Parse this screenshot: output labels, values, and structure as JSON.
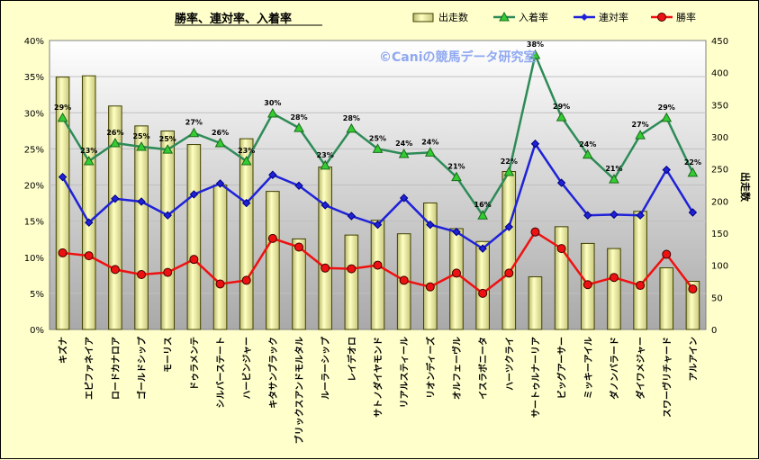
{
  "chart_data": {
    "type": "bar",
    "title": "勝率、連対率、入着率",
    "watermark": "©Caniの競馬データ研究室",
    "y2label": "出走数",
    "ylim": [
      0,
      40
    ],
    "y2lim": [
      0,
      450
    ],
    "yticks": [
      "0%",
      "5%",
      "10%",
      "15%",
      "20%",
      "25%",
      "30%",
      "35%",
      "40%"
    ],
    "y2ticks": [
      "0",
      "50",
      "100",
      "150",
      "200",
      "250",
      "300",
      "350",
      "400",
      "450"
    ],
    "legend": {
      "position": "top-right",
      "items": [
        "出走数",
        "入着率",
        "連対率",
        "勝率"
      ]
    },
    "colors": {
      "bar": "#f0f0a0",
      "bar_stroke": "#404000",
      "show": "#2e8b57",
      "show_marker": "#33cc33",
      "place": "#1f22d6",
      "win": "#ee1111"
    },
    "categories": [
      "キズナ",
      "エピファネイア",
      "ロードカナロア",
      "ゴールドシップ",
      "モーリス",
      "ドゥラメンテ",
      "シルバーステート",
      "ハービンジャー",
      "キタサンブラック",
      "ブリックスアンドモルタル",
      "ルーラーシップ",
      "レイデオロ",
      "サトノダイヤモンド",
      "リアルスティール",
      "リオンディーズ",
      "オルフェーヴル",
      "イスラボニータ",
      "ハーツクライ",
      "サートゥルナーリア",
      "ビッグアーサー",
      "ミッキーアイル",
      "ダノンバラード",
      "ダイワメジャー",
      "スワーヴリチャード",
      "アルアイン"
    ],
    "series": [
      {
        "name": "出走数",
        "axis": "right",
        "values": [
          393,
          395,
          348,
          317,
          309,
          288,
          225,
          297,
          215,
          141,
          253,
          147,
          170,
          149,
          197,
          157,
          137,
          246,
          82,
          160,
          134,
          126,
          184,
          96,
          75
        ]
      },
      {
        "name": "入着率",
        "axis": "left",
        "values": [
          29.3,
          23.3,
          25.8,
          25.3,
          24.9,
          27.2,
          25.8,
          23.3,
          29.9,
          27.9,
          22.7,
          27.8,
          25.0,
          24.3,
          24.5,
          21.1,
          15.8,
          21.8,
          38.0,
          29.4,
          24.2,
          20.8,
          26.9,
          29.3,
          21.7
        ]
      },
      {
        "name": "連対率",
        "axis": "left",
        "values": [
          21.1,
          14.8,
          18.1,
          17.7,
          15.8,
          18.7,
          20.2,
          17.5,
          21.4,
          19.9,
          17.2,
          15.7,
          14.5,
          18.2,
          14.5,
          13.5,
          11.2,
          14.2,
          25.7,
          20.3,
          15.8,
          15.9,
          15.8,
          22.1,
          16.2
        ]
      },
      {
        "name": "勝率",
        "axis": "left",
        "values": [
          10.6,
          10.2,
          8.3,
          7.6,
          7.9,
          9.7,
          6.3,
          6.8,
          12.6,
          11.4,
          8.5,
          8.4,
          8.9,
          6.8,
          5.9,
          7.8,
          5.0,
          7.8,
          13.5,
          11.2,
          6.2,
          7.2,
          6.1,
          10.4,
          5.6
        ]
      }
    ],
    "labeled_series": "入着率",
    "data_labels": [
      "29%",
      "23%",
      "26%",
      "25%",
      "25%",
      "27%",
      "26%",
      "23%",
      "30%",
      "28%",
      "23%",
      "28%",
      "25%",
      "24%",
      "24%",
      "21%",
      "16%",
      "22%",
      "38%",
      "29%",
      "24%",
      "21%",
      "27%",
      "29%",
      "22%"
    ],
    "grid": true
  }
}
